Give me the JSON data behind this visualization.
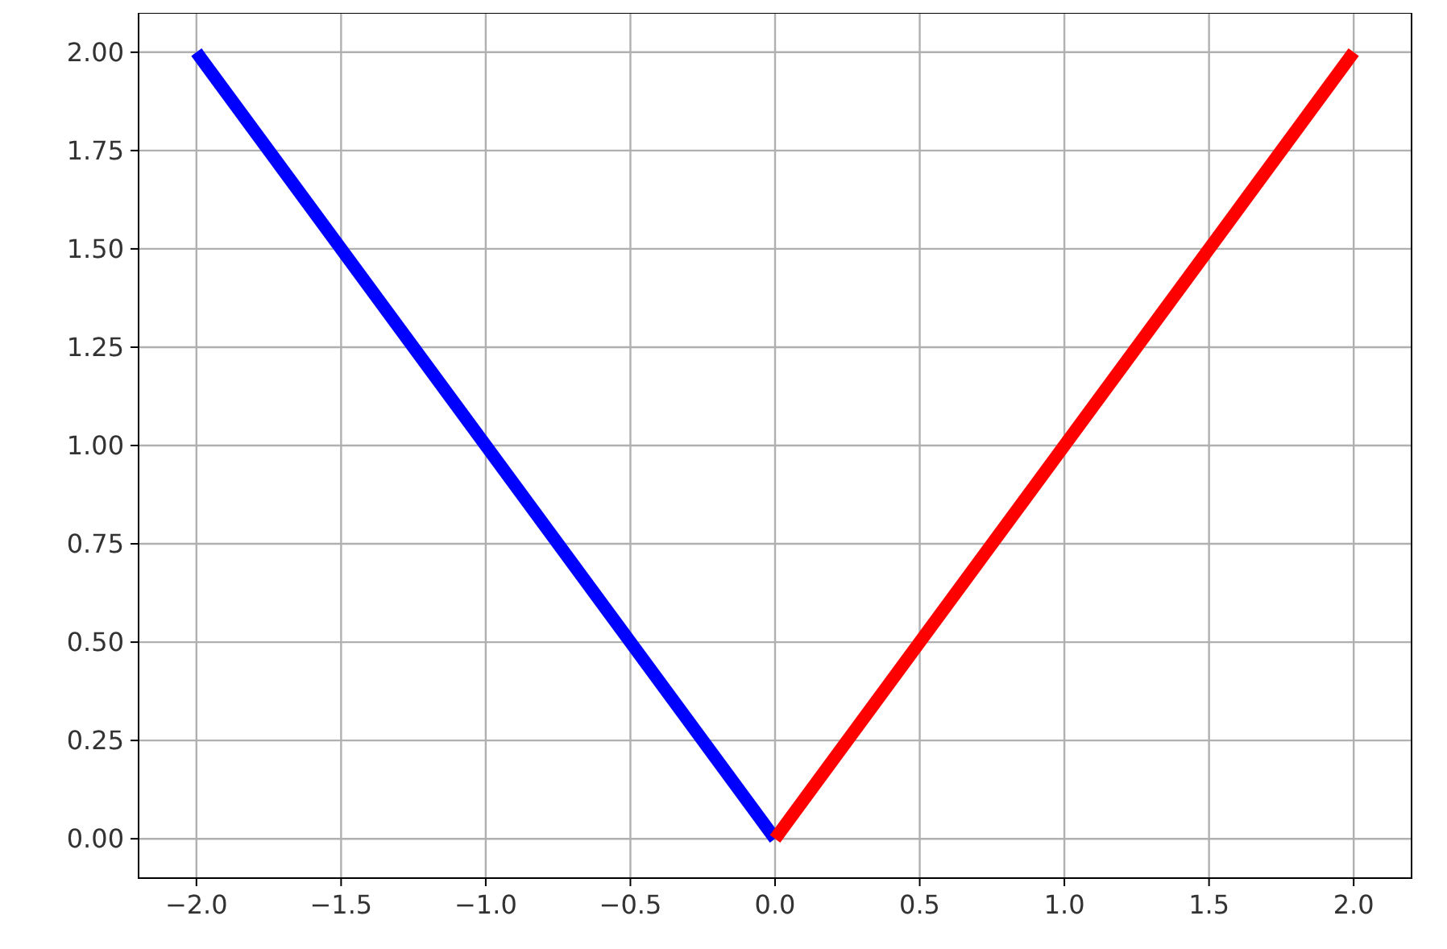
{
  "chart_data": {
    "type": "line",
    "series": [
      {
        "color": "#0000ff",
        "x": [
          -2,
          0
        ],
        "values": [
          2,
          0
        ]
      },
      {
        "color": "#ff0000",
        "x": [
          0,
          2
        ],
        "values": [
          0,
          2
        ]
      }
    ],
    "xlim": [
      -2.2,
      2.2
    ],
    "ylim": [
      -0.1,
      2.1
    ],
    "xticks": [
      {
        "value": -2,
        "label": "−2.0"
      },
      {
        "value": -1.5,
        "label": "−1.5"
      },
      {
        "value": -1,
        "label": "−1.0"
      },
      {
        "value": -0.5,
        "label": "−0.5"
      },
      {
        "value": 0,
        "label": "0.0"
      },
      {
        "value": 0.5,
        "label": "0.5"
      },
      {
        "value": 1,
        "label": "1.0"
      },
      {
        "value": 1.5,
        "label": "1.5"
      },
      {
        "value": 2,
        "label": "2.0"
      }
    ],
    "yticks": [
      {
        "value": 0,
        "label": "0.00"
      },
      {
        "value": 0.25,
        "label": "0.25"
      },
      {
        "value": 0.5,
        "label": "0.50"
      },
      {
        "value": 0.75,
        "label": "0.75"
      },
      {
        "value": 1,
        "label": "1.00"
      },
      {
        "value": 1.25,
        "label": "1.25"
      },
      {
        "value": 1.5,
        "label": "1.50"
      },
      {
        "value": 1.75,
        "label": "1.75"
      },
      {
        "value": 2,
        "label": "2.00"
      }
    ],
    "grid": true,
    "line_style": "solid",
    "marker": "none"
  }
}
